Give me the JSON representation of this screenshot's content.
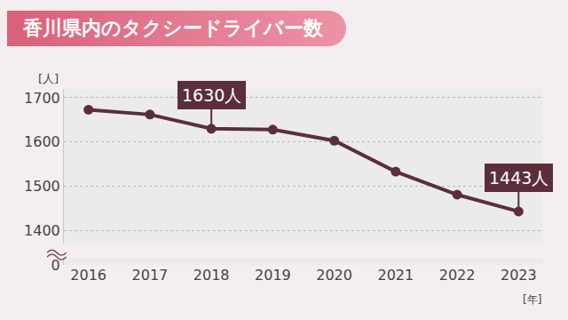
{
  "chart_data": {
    "type": "line",
    "title": "香川県内のタクシードライバー数",
    "y_label": "[人]",
    "x_label": "[年]",
    "categories": [
      "2016",
      "2017",
      "2018",
      "2019",
      "2020",
      "2021",
      "2022",
      "2023"
    ],
    "values": [
      1673,
      1662,
      1630,
      1628,
      1603,
      1533,
      1481,
      1443
    ],
    "color": "#5b2e3c",
    "marker": "circle",
    "line_style": "solid",
    "ylim": [
      0,
      1720
    ],
    "yticks": [
      0,
      1400,
      1500,
      1600,
      1700
    ],
    "grid": true,
    "annotations": [
      {
        "category": "2018",
        "text": "1630人"
      },
      {
        "category": "2023",
        "text": "1443人"
      }
    ]
  }
}
